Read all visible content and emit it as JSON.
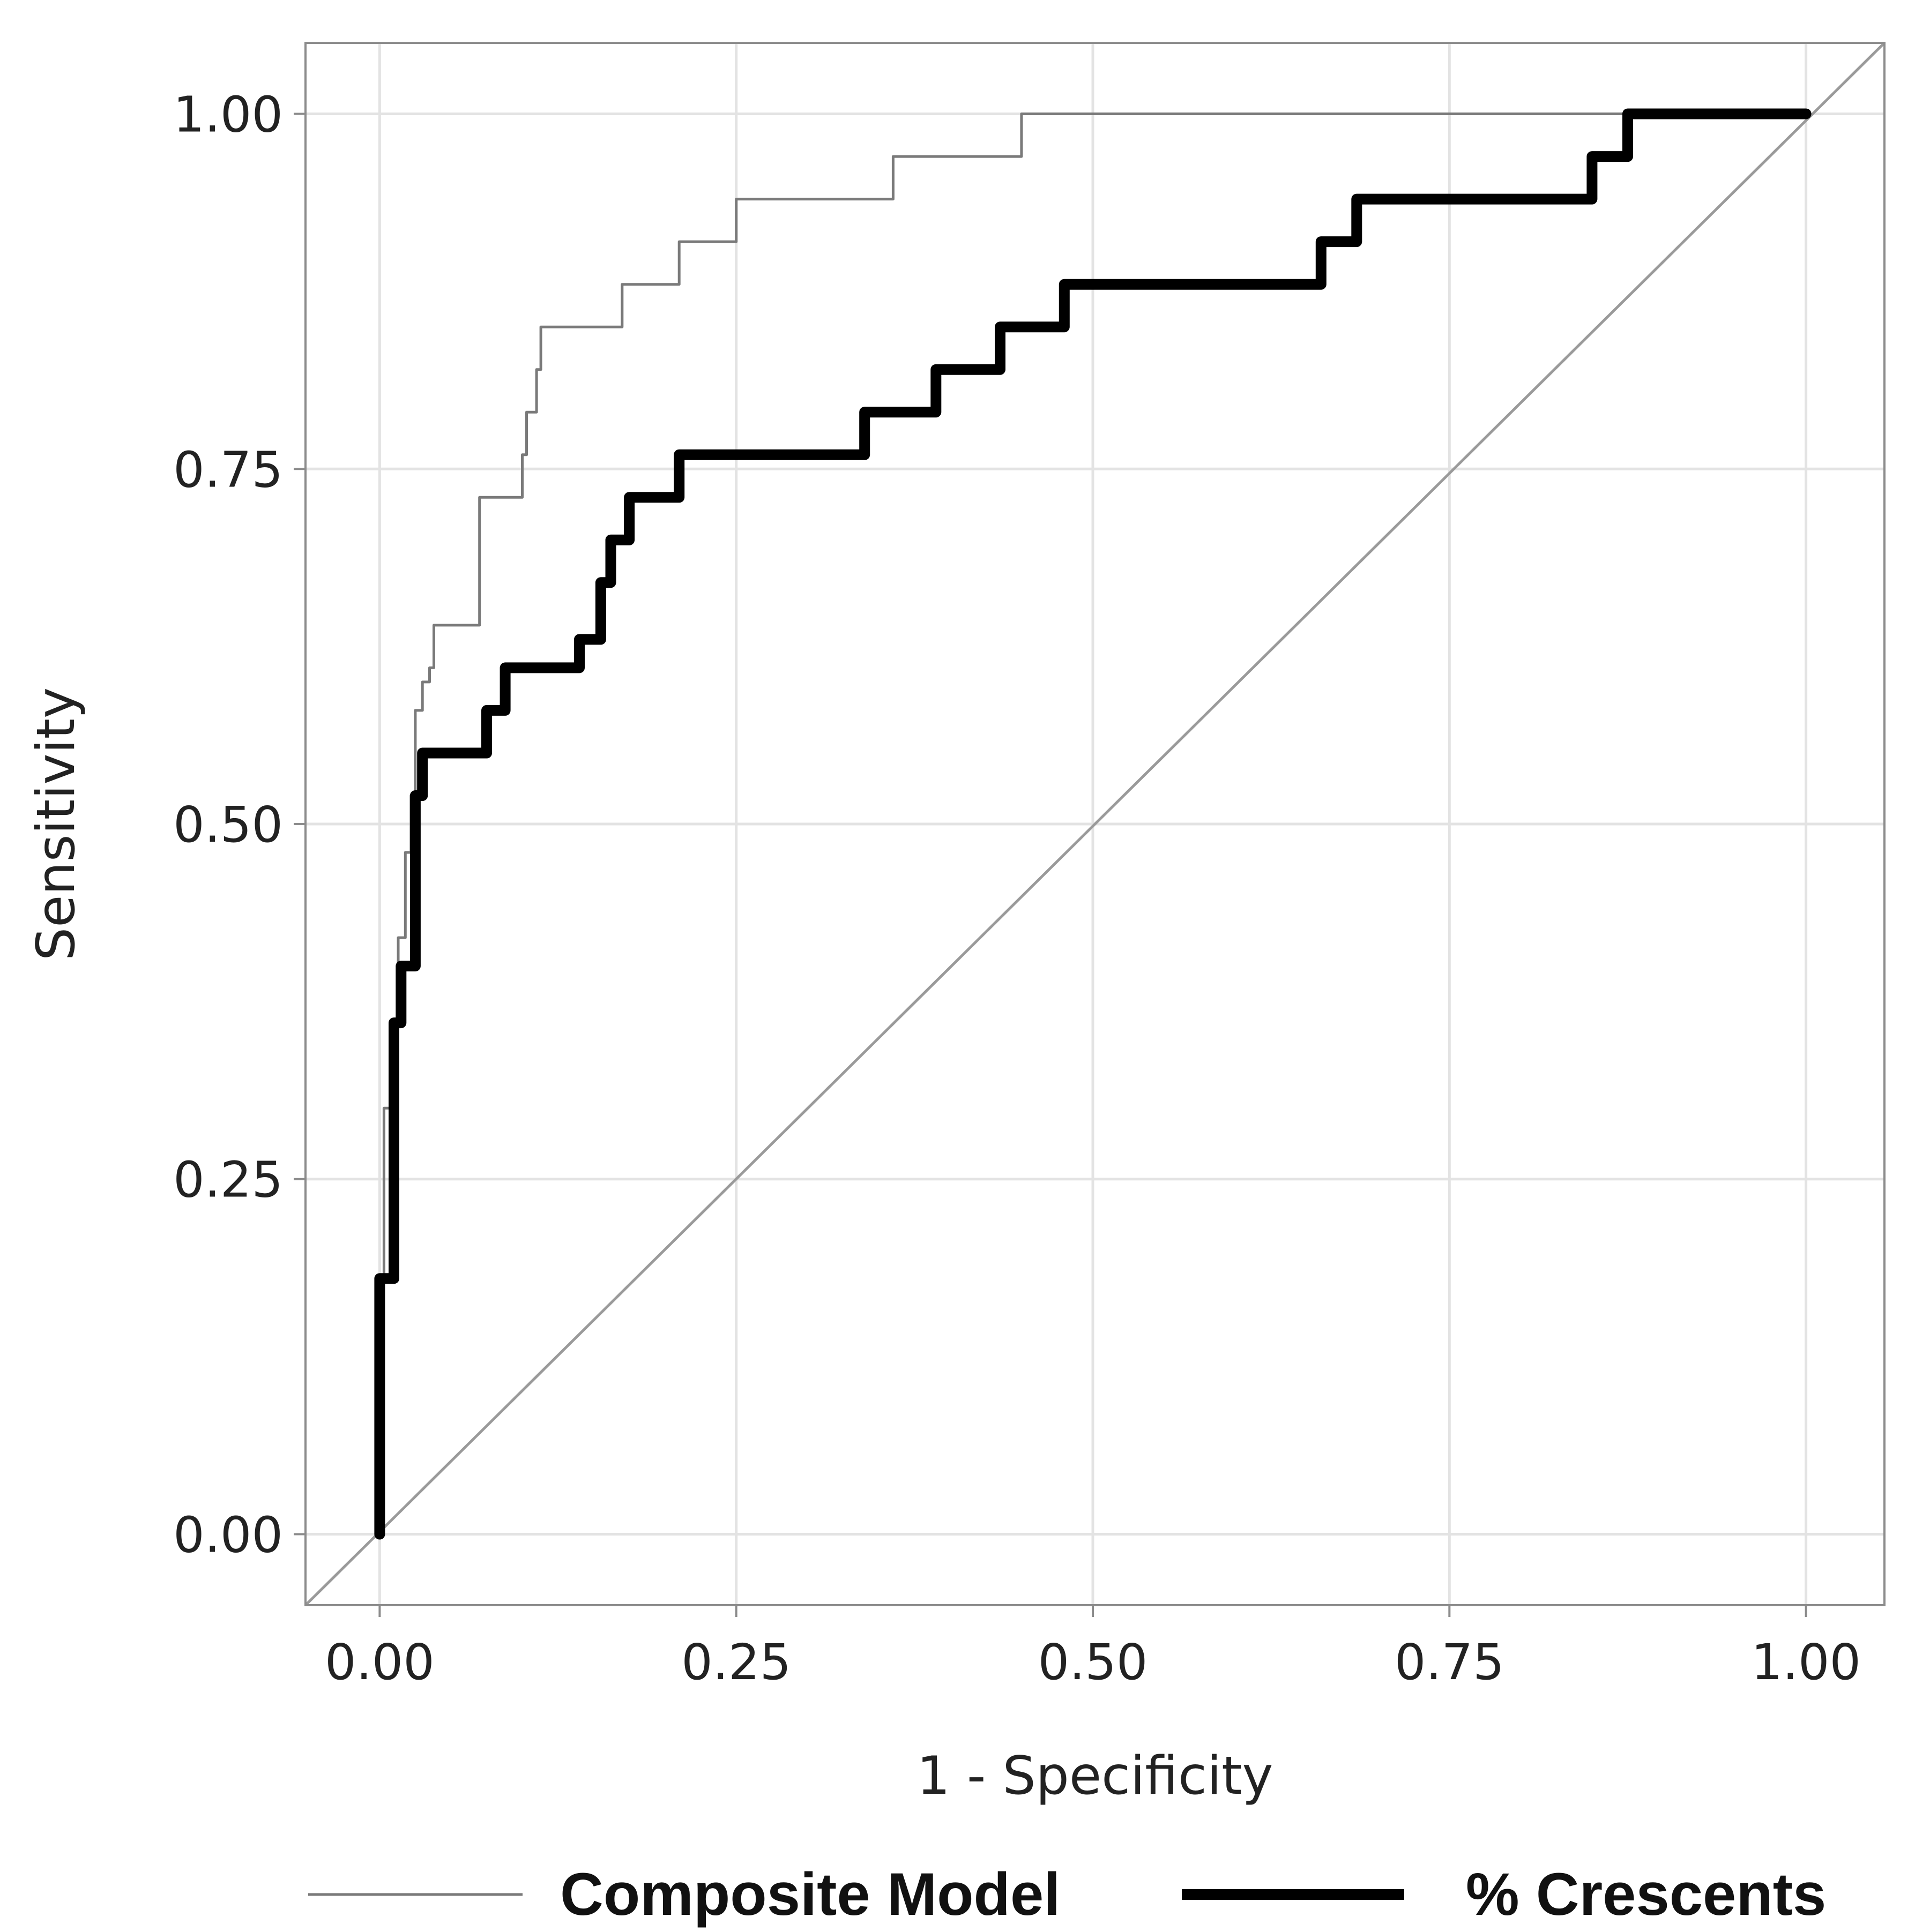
{
  "colors": {
    "background": "#ffffff",
    "panel_border": "#8c8c8c",
    "grid": "#e3e3e3",
    "diagonal": "#9a9a9a",
    "composite": "#7a7a7a",
    "crescents": "#000000",
    "text": "#222222"
  },
  "chart_data": {
    "type": "line",
    "title": "",
    "xlabel": "1 - Specificity",
    "ylabel": "Sensitivity",
    "xlim": [
      -0.052,
      1.055
    ],
    "ylim": [
      -0.05,
      1.05
    ],
    "grid": true,
    "xticks": [
      0,
      0.25,
      0.5,
      0.75,
      1.0
    ],
    "yticks": [
      0,
      0.25,
      0.5,
      0.75,
      1.0
    ],
    "xtick_labels": [
      "0.00",
      "0.25",
      "0.50",
      "0.75",
      "1.00"
    ],
    "ytick_labels": [
      "0.00",
      "0.25",
      "0.50",
      "0.75",
      "1.00"
    ],
    "legend_position": "bottom",
    "reference_line": {
      "name": "chance",
      "x": [
        -0.052,
        1.055
      ],
      "y": [
        -0.05,
        1.05
      ]
    },
    "series": [
      {
        "name": "Composite Model",
        "style": "thin",
        "x": [
          0,
          0,
          0.003,
          0.003,
          0.008,
          0.008,
          0.013,
          0.013,
          0.018,
          0.018,
          0.022,
          0.022,
          0.025,
          0.025,
          0.03,
          0.03,
          0.035,
          0.035,
          0.038,
          0.038,
          0.07,
          0.07,
          0.1,
          0.1,
          0.103,
          0.103,
          0.11,
          0.11,
          0.113,
          0.113,
          0.17,
          0.17,
          0.21,
          0.21,
          0.25,
          0.25,
          0.36,
          0.36,
          0.45,
          0.45,
          0.9,
          0.9,
          1.0
        ],
        "y": [
          0,
          0.18,
          0.18,
          0.3,
          0.3,
          0.36,
          0.36,
          0.42,
          0.42,
          0.48,
          0.48,
          0.52,
          0.52,
          0.58,
          0.58,
          0.6,
          0.6,
          0.61,
          0.61,
          0.64,
          0.64,
          0.73,
          0.73,
          0.76,
          0.76,
          0.79,
          0.79,
          0.82,
          0.82,
          0.85,
          0.85,
          0.88,
          0.88,
          0.91,
          0.91,
          0.94,
          0.94,
          0.97,
          0.97,
          1.0,
          1.0,
          1.0,
          1.0
        ]
      },
      {
        "name": "% Crescents",
        "style": "thick",
        "x": [
          0,
          0,
          0.01,
          0.01,
          0.015,
          0.015,
          0.025,
          0.025,
          0.03,
          0.03,
          0.075,
          0.075,
          0.088,
          0.088,
          0.14,
          0.14,
          0.155,
          0.155,
          0.162,
          0.162,
          0.175,
          0.175,
          0.21,
          0.21,
          0.33,
          0.33,
          0.34,
          0.34,
          0.39,
          0.39,
          0.435,
          0.435,
          0.48,
          0.48,
          0.66,
          0.66,
          0.685,
          0.685,
          0.84,
          0.84,
          0.85,
          0.85,
          0.875,
          0.875,
          1.0
        ],
        "y": [
          0,
          0.18,
          0.18,
          0.36,
          0.36,
          0.4,
          0.4,
          0.52,
          0.52,
          0.55,
          0.55,
          0.58,
          0.58,
          0.61,
          0.61,
          0.63,
          0.63,
          0.67,
          0.67,
          0.7,
          0.7,
          0.73,
          0.73,
          0.76,
          0.76,
          0.76,
          0.76,
          0.79,
          0.79,
          0.82,
          0.82,
          0.85,
          0.85,
          0.88,
          0.88,
          0.91,
          0.91,
          0.94,
          0.94,
          0.94,
          0.94,
          0.97,
          0.97,
          1.0,
          1.0
        ]
      }
    ]
  }
}
